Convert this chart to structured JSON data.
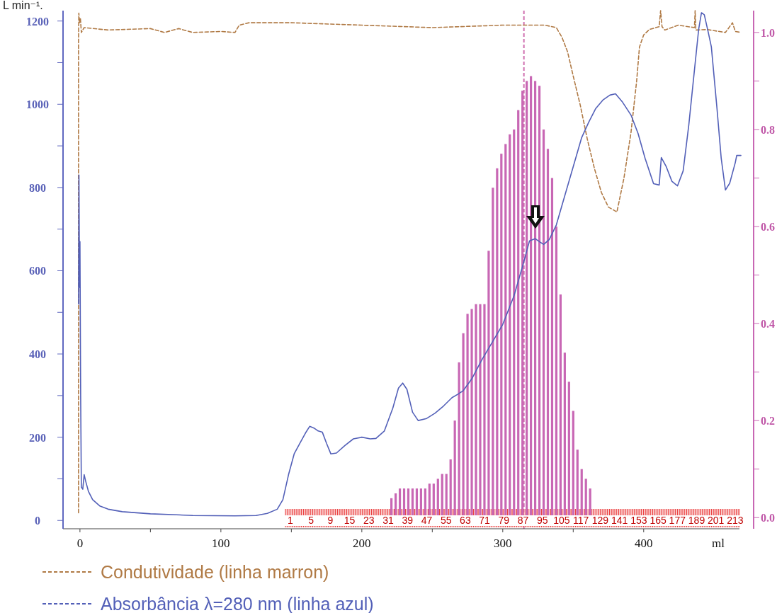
{
  "chart_data": {
    "type": "line",
    "xlabel": "ml",
    "annotations": [
      "L min⁻¹.",
      "1 5 9 15 23 31 39 47 55 63 71 79 87 95 105 117 129 141 153 165 177 189 201 213"
    ],
    "xlim": [
      -12,
      478
    ],
    "xticks": [
      0,
      {
        "value": 50,
        "label": null
      },
      100,
      {
        "value": 150,
        "label": null
      },
      200,
      {
        "value": 250,
        "label": null
      },
      300,
      {
        "value": 350,
        "label": null
      },
      400
    ],
    "ylim": [
      -20,
      1225
    ],
    "yticks": [
      0,
      {
        "value": 100,
        "label": null
      },
      200,
      {
        "value": 300,
        "label": null
      },
      400,
      {
        "value": 500,
        "label": null
      },
      600,
      {
        "value": 700,
        "label": null
      },
      800,
      {
        "value": 900,
        "label": null
      },
      1000,
      {
        "value": 1100,
        "label": null
      },
      1200
    ],
    "y2lim": [
      -0.023,
      1.045
    ],
    "y2ticks": [
      {
        "value": 0,
        "label": "0.0"
      },
      {
        "value": 0.1,
        "label": null
      },
      {
        "value": 0.2,
        "label": "0.2"
      },
      {
        "value": 0.3,
        "label": null
      },
      {
        "value": 0.4,
        "label": "0.4"
      },
      {
        "value": 0.5,
        "label": null
      },
      {
        "value": 0.6,
        "label": "0.6"
      },
      {
        "value": 0.7,
        "label": null
      },
      {
        "value": 0.8,
        "label": "0.8"
      },
      {
        "value": 0.9,
        "label": null
      },
      {
        "value": 1,
        "label": "1.0"
      }
    ],
    "grid": false,
    "legend": "bottom",
    "ref_lines": [
      {
        "axis": "x",
        "value": 315,
        "color": "#d070b0",
        "line_style": "dashed"
      }
    ],
    "series": [
      {
        "type": "bar",
        "axis": "y2",
        "color": "#c867b4",
        "x": [
          221,
          224,
          227,
          230,
          233,
          236,
          239,
          242,
          245,
          248,
          251,
          254,
          257,
          260,
          263,
          266,
          269,
          272,
          275,
          278,
          281,
          284,
          287,
          290,
          293,
          296,
          299,
          302,
          305,
          308,
          311,
          314,
          317,
          320,
          323,
          326,
          329,
          332,
          335,
          338,
          341,
          344,
          347,
          350,
          353,
          356,
          359,
          362
        ],
        "values": [
          0.04,
          0.05,
          0.06,
          0.06,
          0.06,
          0.06,
          0.06,
          0.06,
          0.06,
          0.07,
          0.07,
          0.08,
          0.09,
          0.09,
          0.12,
          0.2,
          0.32,
          0.38,
          0.42,
          0.43,
          0.44,
          0.44,
          0.44,
          0.55,
          0.68,
          0.72,
          0.75,
          0.77,
          0.79,
          0.8,
          0.84,
          0.88,
          0.9,
          0.91,
          0.9,
          0.89,
          0.8,
          0.76,
          0.7,
          0.6,
          0.46,
          0.34,
          0.28,
          0.22,
          0.14,
          0.1,
          0.08,
          0.06
        ]
      },
      {
        "name": "Condutividade (linha marron)",
        "axis": "y2",
        "line_style": "dashed",
        "color": "#b07a45",
        "x": [
          -1,
          -1,
          -0.8,
          -0.3,
          0.3,
          1,
          3,
          20,
          50,
          60,
          70,
          80,
          100,
          110,
          113,
          120,
          150,
          200,
          250,
          300,
          330,
          338,
          342,
          346,
          350,
          355,
          360,
          365,
          370,
          375,
          381,
          386,
          391,
          395,
          397,
          400,
          404,
          411,
          412,
          413,
          415,
          424.6,
          436,
          436.5,
          437,
          445,
          458,
          463,
          465,
          469
        ],
        "values": [
          0.01,
          0.98,
          1.04,
          1.02,
          1.03,
          1.0,
          1.01,
          1.005,
          1.008,
          1.0,
          1.008,
          1.0,
          1.002,
          1.0,
          1.015,
          1.02,
          1.02,
          1.015,
          1.01,
          1.015,
          1.015,
          1.01,
          0.99,
          0.96,
          0.91,
          0.85,
          0.78,
          0.72,
          0.67,
          0.64,
          0.63,
          0.7,
          0.794,
          0.9,
          0.97,
          0.995,
          1.006,
          1.012,
          1.045,
          1.012,
          1.005,
          1.015,
          1.01,
          1.045,
          1.005,
          1.006,
          1.0,
          1.02,
          1.002,
          1.0
        ]
      },
      {
        "name": "Absorbância λ=280 nm (linha azul)",
        "axis": "y",
        "line_style": "solid",
        "color": "#5360b8",
        "x": [
          -1,
          -0.7,
          -0.3,
          0,
          0.5,
          1,
          2,
          3,
          4,
          6,
          9,
          14,
          20,
          30,
          50,
          80,
          110,
          125,
          133,
          140,
          144,
          148,
          152,
          156,
          160,
          163,
          166,
          169,
          172,
          175,
          178,
          182,
          188,
          194,
          200,
          206,
          210,
          216,
          222,
          226,
          229,
          232,
          236,
          240,
          246,
          252,
          258,
          264,
          268,
          272,
          278,
          285,
          292,
          300,
          308,
          314,
          319,
          323,
          326,
          329,
          333,
          338,
          342,
          350,
          356,
          361,
          366,
          371,
          376,
          380,
          385,
          391,
          396,
          401,
          407,
          411,
          412.5,
          416,
          420,
          424,
          428,
          432,
          436,
          439,
          441,
          443,
          446,
          448,
          452,
          455,
          458,
          461,
          465,
          466,
          469
        ],
        "values": [
          520,
          830,
          560,
          670,
          300,
          80,
          75,
          110,
          95,
          70,
          50,
          35,
          27,
          21,
          16,
          12,
          11,
          12,
          17,
          27,
          50,
          110,
          160,
          185,
          210,
          226,
          222,
          215,
          212,
          185,
          160,
          162,
          180,
          196,
          200,
          196,
          197,
          215,
          270,
          318,
          330,
          315,
          260,
          240,
          245,
          258,
          275,
          295,
          303,
          312,
          340,
          385,
          425,
          471,
          540,
          610,
          672,
          677,
          670,
          663,
          675,
          710,
          757,
          850,
          920,
          957,
          990,
          1010,
          1022,
          1025,
          1005,
          974,
          930,
          870,
          809,
          806,
          872,
          850,
          815,
          804,
          840,
          950,
          1082,
          1180,
          1220,
          1215,
          1170,
          1138,
          990,
          870,
          794,
          810,
          860,
          877,
          877
        ]
      }
    ]
  }
}
